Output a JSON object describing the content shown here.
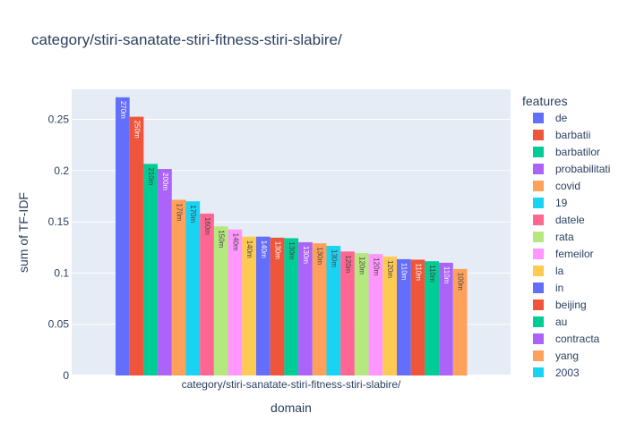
{
  "chart_data": {
    "type": "bar",
    "title": "category/stiri-sanatate-stiri-fitness-stiri-slabire/",
    "xlabel": "domain",
    "ylabel": "sum of TF-IDF",
    "categories": [
      "category/stiri-sanatate-stiri-fitness-stiri-slabire/"
    ],
    "yticks": [
      "0",
      "0.05",
      "0.1",
      "0.15",
      "0.2",
      "0.25"
    ],
    "ylim": [
      0,
      0.2792
    ],
    "legend_title": "features",
    "legend_position": "right",
    "grid": true,
    "series": [
      {
        "name": "de",
        "value": 0.2715,
        "label": "270m",
        "color": "#636efa"
      },
      {
        "name": "barbatii",
        "value": 0.2525,
        "label": "250m",
        "color": "#EF553B"
      },
      {
        "name": "barbatilor",
        "value": 0.2065,
        "label": "210m",
        "color": "#00cc96"
      },
      {
        "name": "probabilitati",
        "value": 0.2015,
        "label": "200m",
        "color": "#ab63fa"
      },
      {
        "name": "covid",
        "value": 0.1715,
        "label": "170m",
        "color": "#FFA15A"
      },
      {
        "name": "19",
        "value": 0.17,
        "label": "170m",
        "color": "#19d3f3"
      },
      {
        "name": "datele",
        "value": 0.158,
        "label": "160m",
        "color": "#FF6692"
      },
      {
        "name": "rata",
        "value": 0.1455,
        "label": "150m",
        "color": "#B6E880"
      },
      {
        "name": "femeilor",
        "value": 0.1425,
        "label": "140m",
        "color": "#FF97FF"
      },
      {
        "name": "la",
        "value": 0.1355,
        "label": "140m",
        "color": "#FECB52"
      },
      {
        "name": "in",
        "value": 0.1355,
        "label": "140m",
        "color": "#636efa"
      },
      {
        "name": "beijing",
        "value": 0.1345,
        "label": "130m",
        "color": "#EF553B"
      },
      {
        "name": "au",
        "value": 0.134,
        "label": "130m",
        "color": "#00cc96"
      },
      {
        "name": "contracta",
        "value": 0.13,
        "label": "130m",
        "color": "#ab63fa"
      },
      {
        "name": "yang",
        "value": 0.129,
        "label": "130m",
        "color": "#FFA15A"
      },
      {
        "name": "2003",
        "value": 0.1265,
        "label": "130m",
        "color": "#19d3f3"
      },
      {
        "name": "",
        "value": 0.121,
        "label": "120m",
        "color": "#FF6692"
      },
      {
        "name": "",
        "value": 0.1195,
        "label": "120m",
        "color": "#B6E880"
      },
      {
        "name": "",
        "value": 0.1185,
        "label": "120m",
        "color": "#FF97FF"
      },
      {
        "name": "",
        "value": 0.116,
        "label": "120m",
        "color": "#FECB52"
      },
      {
        "name": "",
        "value": 0.1135,
        "label": "110m",
        "color": "#636efa"
      },
      {
        "name": "",
        "value": 0.113,
        "label": "110m",
        "color": "#EF553B"
      },
      {
        "name": "",
        "value": 0.1115,
        "label": "110m",
        "color": "#00cc96"
      },
      {
        "name": "",
        "value": 0.11,
        "label": "110m",
        "color": "#ab63fa"
      },
      {
        "name": "",
        "value": 0.104,
        "label": "100m",
        "color": "#FFA15A"
      }
    ]
  }
}
